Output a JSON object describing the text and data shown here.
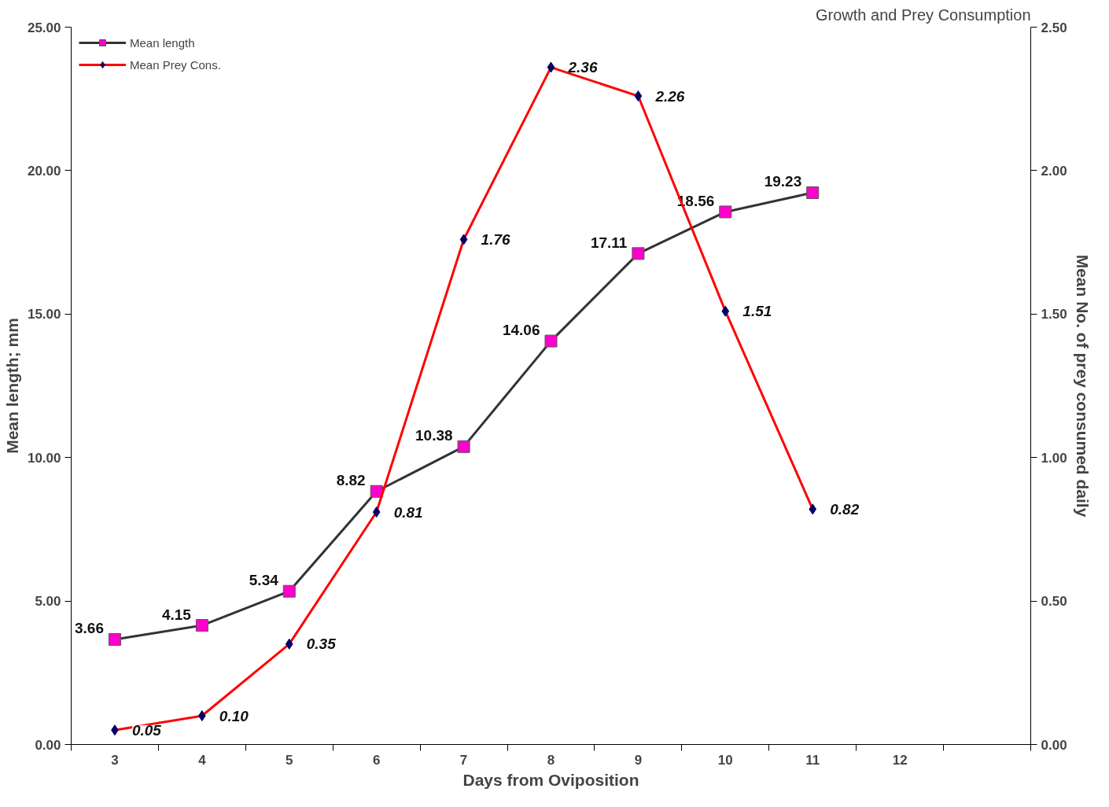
{
  "chart_data": {
    "type": "line",
    "title": "Growth and Prey Consumption",
    "xlabel": "Days from Oviposition",
    "ylabel": "Mean length; mm",
    "y2label": "Mean No. of prey consumed daily",
    "categories": [
      "3",
      "4",
      "5",
      "6",
      "7",
      "8",
      "9",
      "10",
      "11",
      "12",
      null
    ],
    "series": [
      {
        "name": "Mean length",
        "color": "#333333",
        "marker": "square",
        "values": [
          3.66,
          4.15,
          5.34,
          8.82,
          10.38,
          14.06,
          17.11,
          18.56,
          19.23,
          null,
          null
        ],
        "value_labels": [
          "3.66",
          "4.15",
          "5.34",
          "8.82",
          "10.38",
          "14.06",
          "17.11",
          "18.56",
          "19.23",
          null,
          null
        ]
      },
      {
        "name": "Mean Prey Cons.",
        "color": "#ff0000",
        "marker": "diamond",
        "axis": "y2",
        "values": [
          0.05,
          0.1,
          0.35,
          0.81,
          1.76,
          2.36,
          2.26,
          1.51,
          0.82,
          null,
          null
        ],
        "value_labels": [
          "0.05",
          "0.10",
          "0.35",
          "0.81",
          "1.76",
          "2.36",
          "2.26",
          "1.51",
          "0.82",
          null,
          null
        ]
      }
    ],
    "ylim": [
      0,
      25
    ],
    "yticks": [
      {
        "value": 0,
        "label": "0.00"
      },
      {
        "value": 5,
        "label": "5.00"
      },
      {
        "value": 10,
        "label": "10.00"
      },
      {
        "value": 15,
        "label": "15.00"
      },
      {
        "value": 20,
        "label": "20.00"
      },
      {
        "value": 25,
        "label": "25.00"
      }
    ],
    "y2lim": [
      0,
      2.5
    ],
    "y2ticks": [
      {
        "value": 0,
        "label": "0.00"
      },
      {
        "value": 0.5,
        "label": "0.50"
      },
      {
        "value": 1,
        "label": "1.00"
      },
      {
        "value": 1.5,
        "label": "1.50"
      },
      {
        "value": 2,
        "label": "2.00"
      },
      {
        "value": 2.5,
        "label": "2.50"
      }
    ],
    "grid": false,
    "legend": "top left"
  }
}
